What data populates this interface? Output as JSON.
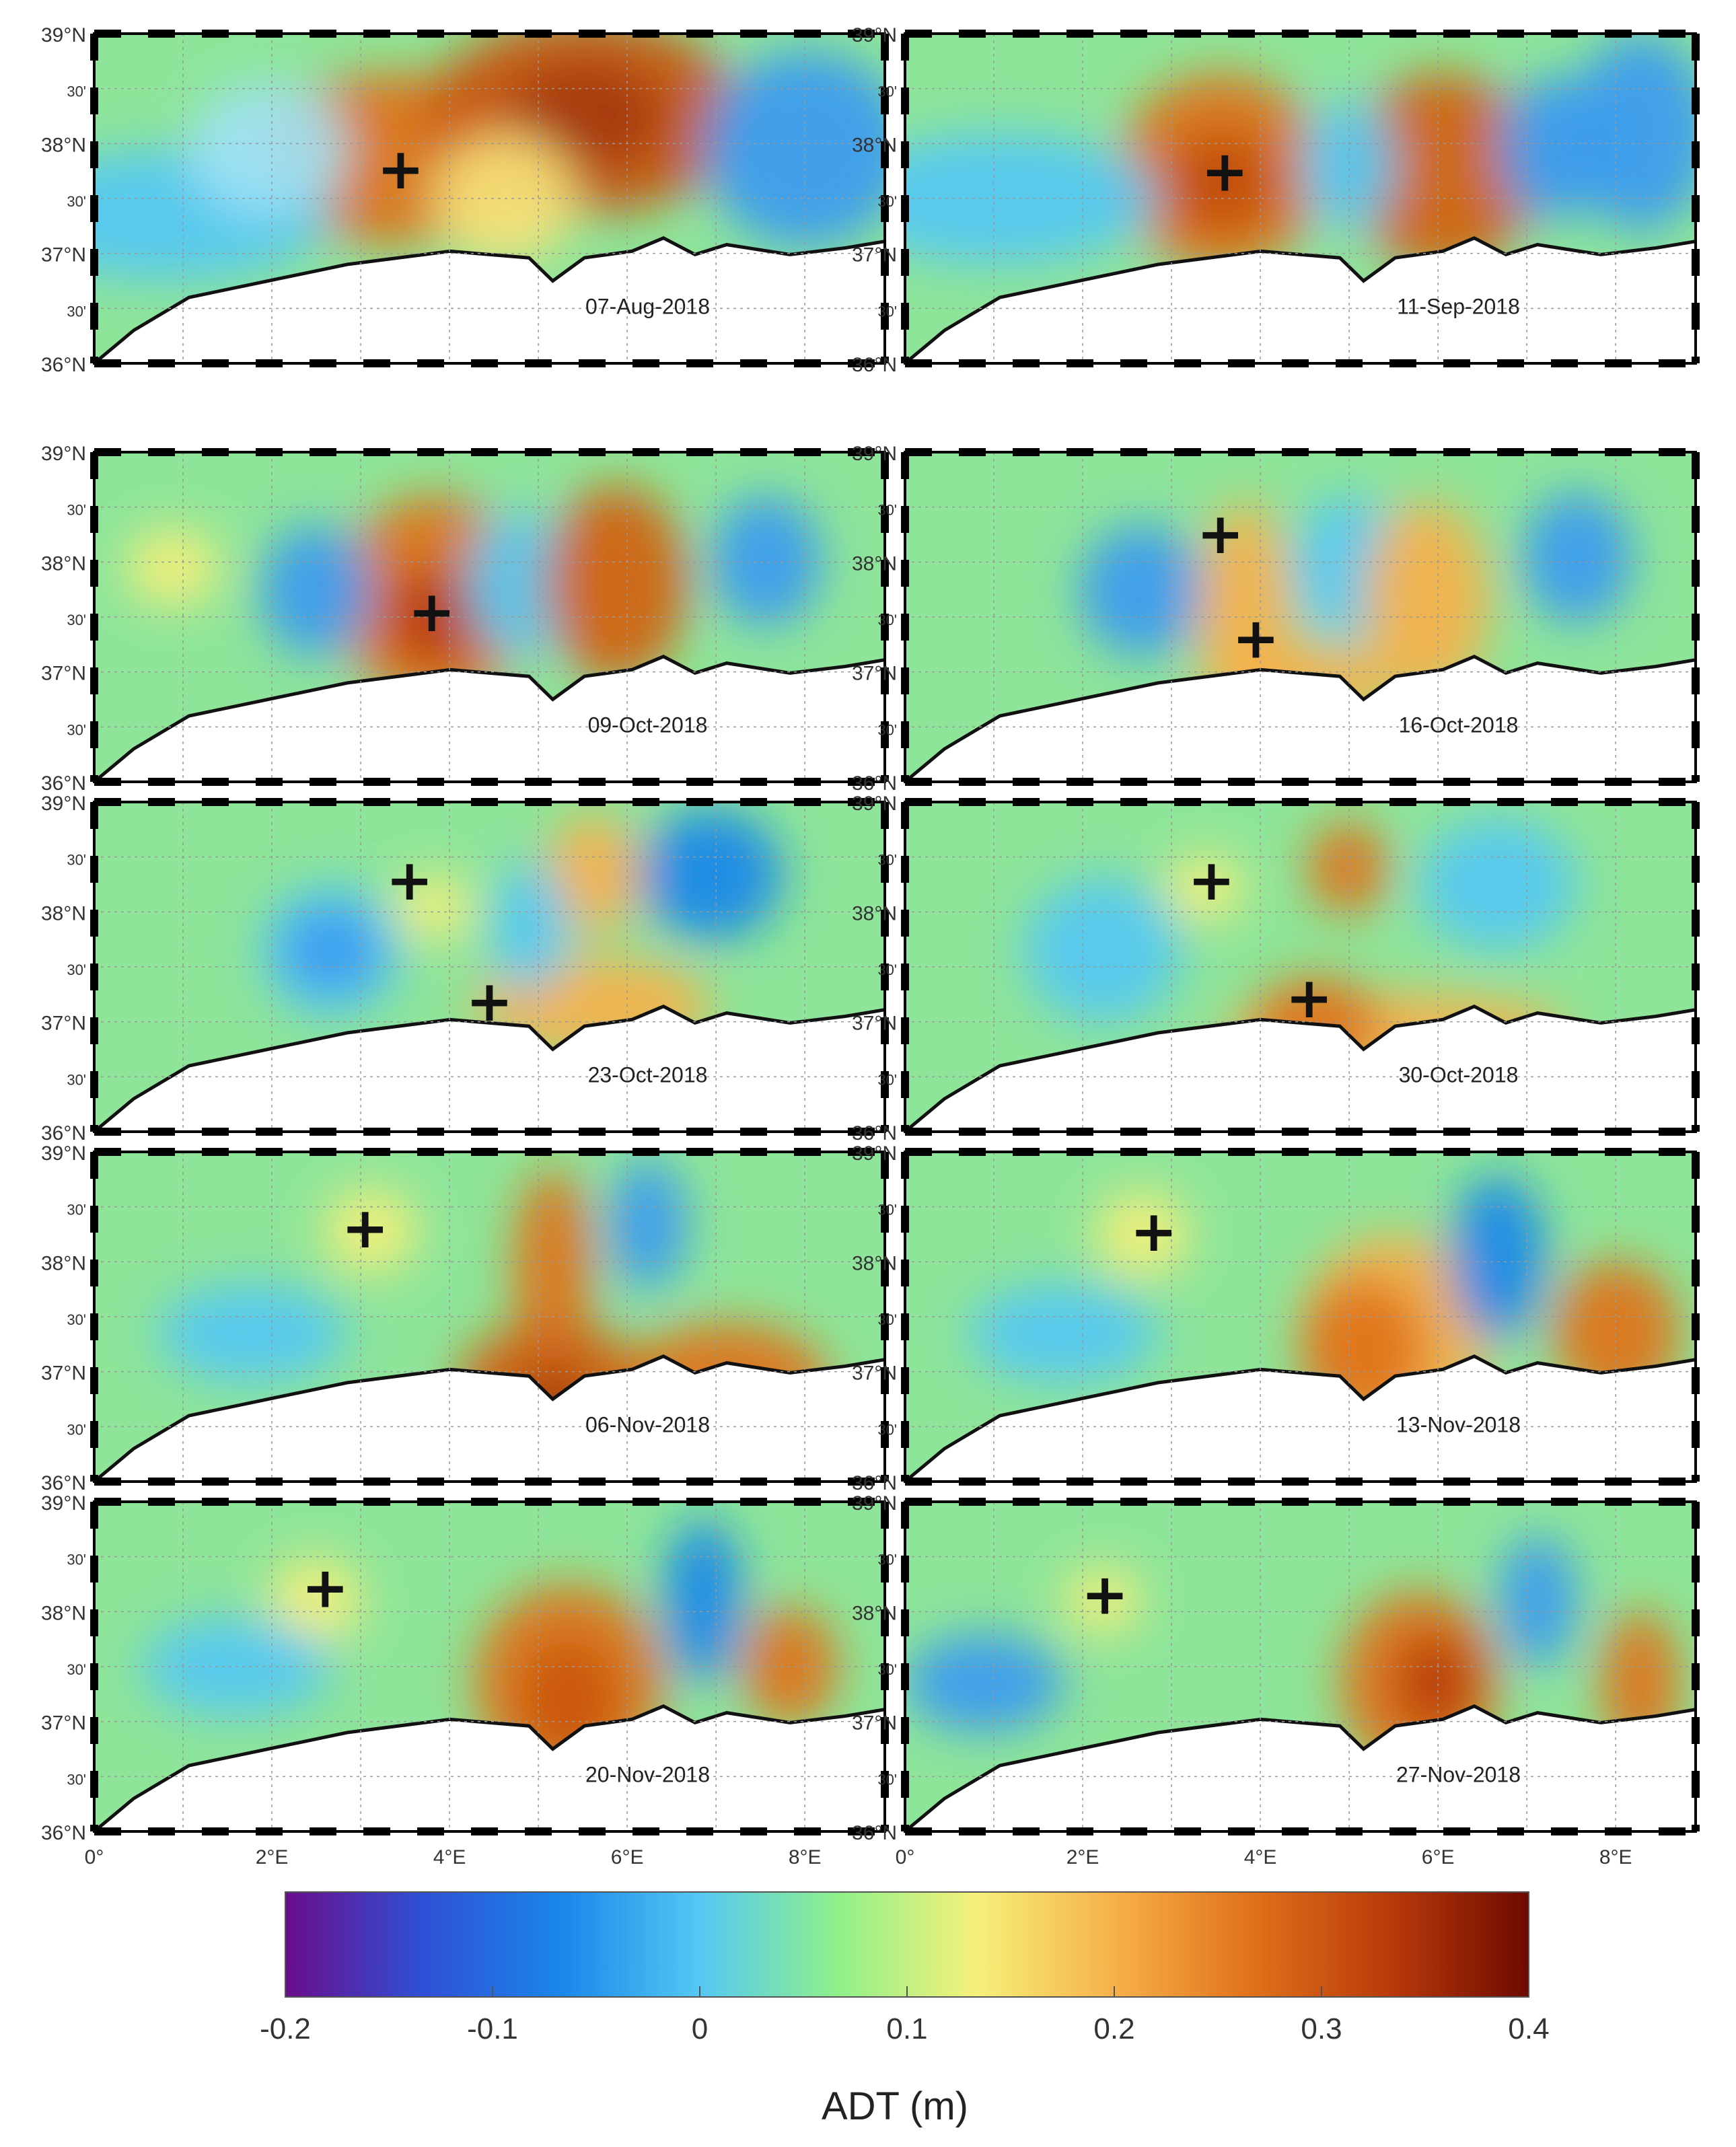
{
  "figure": {
    "lat_labels": [
      "39°N",
      "30'",
      "38°N",
      "30'",
      "37°N",
      "30'",
      "36°N"
    ],
    "lon_labels": [
      "0°",
      "2°E",
      "4°E",
      "6°E",
      "8°E"
    ],
    "extent": {
      "lon": [
        0,
        8.9
      ],
      "lat": [
        36,
        39
      ]
    },
    "grid": true,
    "marker_symbol": "+",
    "panels": [
      {
        "date": "07-Aug-2018",
        "markers": [
          [
            3.45,
            37.75
          ]
        ]
      },
      {
        "date": "11-Sep-2018",
        "markers": [
          [
            3.6,
            37.73
          ]
        ]
      },
      {
        "date": "09-Oct-2018",
        "markers": [
          [
            3.8,
            37.53
          ]
        ]
      },
      {
        "date": "16-Oct-2018",
        "markers": [
          [
            3.55,
            38.24
          ],
          [
            3.95,
            37.29
          ]
        ]
      },
      {
        "date": "23-Oct-2018",
        "markers": [
          [
            3.55,
            38.27
          ],
          [
            4.45,
            37.17
          ]
        ]
      },
      {
        "date": "30-Oct-2018",
        "markers": [
          [
            3.45,
            38.27
          ],
          [
            4.55,
            37.2
          ]
        ]
      },
      {
        "date": "06-Nov-2018",
        "markers": [
          [
            3.05,
            38.29
          ]
        ]
      },
      {
        "date": "13-Nov-2018",
        "markers": [
          [
            2.8,
            38.26
          ]
        ]
      },
      {
        "date": "20-Nov-2018",
        "markers": [
          [
            2.6,
            38.2
          ]
        ]
      },
      {
        "date": "27-Nov-2018",
        "markers": [
          [
            2.25,
            38.14
          ]
        ]
      }
    ]
  },
  "colorbar": {
    "label": "ADT (m)",
    "ticks": [
      "-0.2",
      "-0.1",
      "0",
      "0.1",
      "0.2",
      "0.3",
      "0.4"
    ],
    "range": [
      -0.2,
      0.4
    ],
    "colors": [
      "#6a0d8a",
      "#2f50d6",
      "#1a86ea",
      "#55c8f3",
      "#8ef08a",
      "#f6f07a",
      "#f7b04a",
      "#e0711a",
      "#b83a0a",
      "#6e0a00"
    ]
  }
}
